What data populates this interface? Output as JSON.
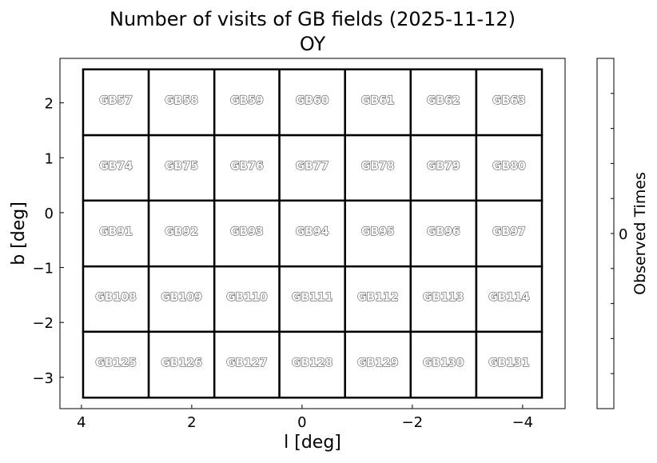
{
  "chart_data": {
    "type": "heatmap",
    "title": "Number of visits of GB fields (2025-11-12)",
    "subtitle": "OY",
    "xlabel": "l [deg]",
    "ylabel": "b [deg]",
    "xlim": [
      4.39,
      -4.77
    ],
    "ylim": [
      -3.57,
      2.81
    ],
    "x_inverted": true,
    "xticks": [
      "4",
      "2",
      "0",
      "−2",
      "−4"
    ],
    "xtick_values": [
      4,
      2,
      0,
      -2,
      -4
    ],
    "yticks": [
      "2",
      "1",
      "0",
      "−1",
      "−2",
      "−3"
    ],
    "ytick_values": [
      2,
      1,
      0,
      -1,
      -2,
      -3
    ],
    "grid": false,
    "column_edges_l": [
      3.97,
      2.78,
      1.59,
      0.41,
      -0.78,
      -1.97,
      -3.16,
      -4.35
    ],
    "row_edges_b": [
      2.61,
      1.41,
      0.22,
      -0.98,
      -2.17,
      -3.37
    ],
    "fields": [
      [
        "GB57",
        "GB58",
        "GB59",
        "GB60",
        "GB61",
        "GB62",
        "GB63"
      ],
      [
        "GB74",
        "GB75",
        "GB76",
        "GB77",
        "GB78",
        "GB79",
        "GB80"
      ],
      [
        "GB91",
        "GB92",
        "GB93",
        "GB94",
        "GB95",
        "GB96",
        "GB97"
      ],
      [
        "GB108",
        "GB109",
        "GB110",
        "GB111",
        "GB112",
        "GB113",
        "GB114"
      ],
      [
        "GB125",
        "GB126",
        "GB127",
        "GB128",
        "GB129",
        "GB130",
        "GB131"
      ]
    ],
    "visits": [
      [
        0,
        0,
        0,
        0,
        0,
        0,
        0
      ],
      [
        0,
        0,
        0,
        0,
        0,
        0,
        0
      ],
      [
        0,
        0,
        0,
        0,
        0,
        0,
        0
      ],
      [
        0,
        0,
        0,
        0,
        0,
        0,
        0
      ],
      [
        0,
        0,
        0,
        0,
        0,
        0,
        0
      ]
    ],
    "colorbar": {
      "label": "Observed Times",
      "ticks": [
        "0"
      ],
      "tick_values": [
        0
      ]
    },
    "colors": {
      "field_fill": "#ffffff",
      "field_edge": "#000000",
      "label_fill": "#ffffff",
      "label_stroke": "#555555"
    }
  }
}
